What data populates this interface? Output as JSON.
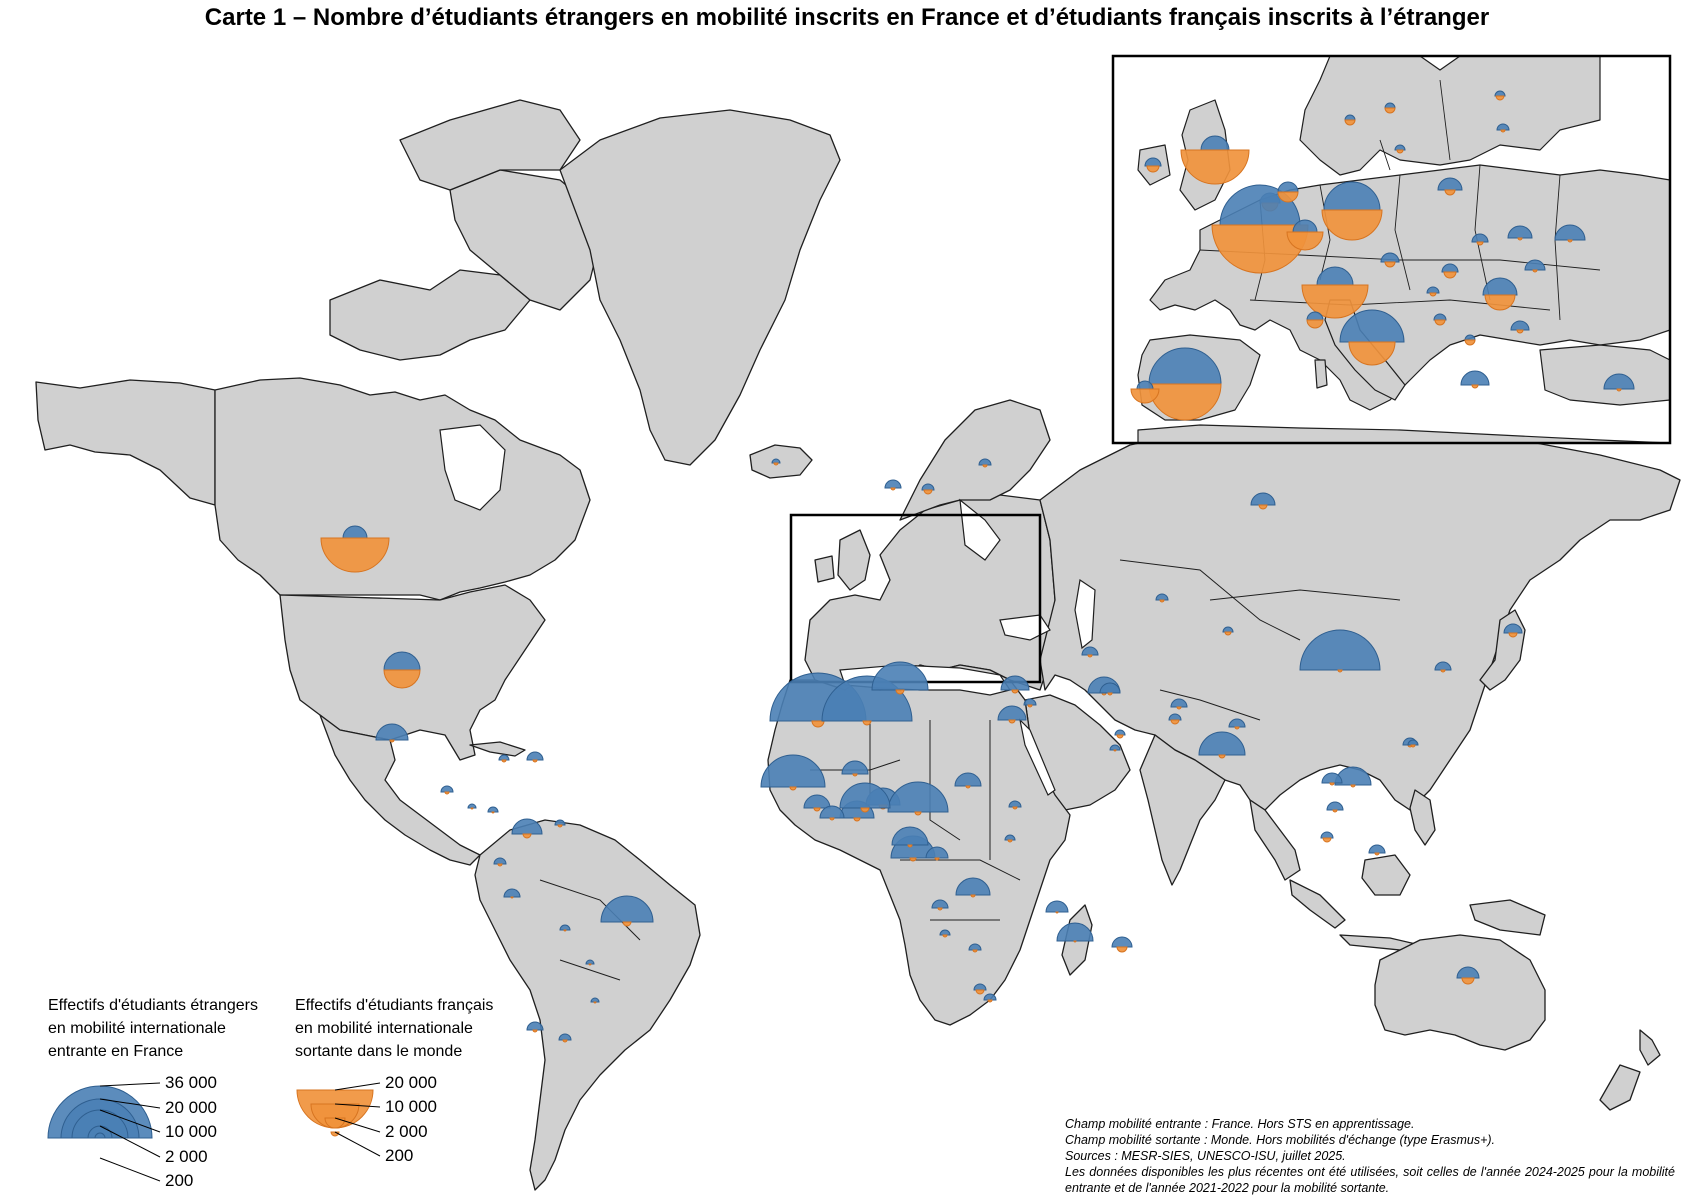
{
  "title": "Carte 1 – Nombre d’étudiants étrangers en mobilité inscrits en France et d’étudiants français inscrits à l’étranger",
  "colors": {
    "incoming": "#4a7fb5",
    "outgoing": "#f0923c",
    "land": "#d0d0d0",
    "border": "#1f1f1f",
    "sea": "#ffffff"
  },
  "legend": {
    "incoming": {
      "lines": [
        "Effectifs d'étudiants étrangers",
        "en mobilité internationale",
        "entrante en France"
      ],
      "labels": [
        "36 000",
        "20 000",
        "10 000",
        "2 000",
        "200"
      ]
    },
    "outgoing": {
      "lines": [
        "Effectifs d'étudiants français",
        "en mobilité internationale",
        "sortante dans le monde"
      ],
      "labels": [
        "20 000",
        "10 000",
        "2 000",
        "200"
      ]
    }
  },
  "notes": [
    "Champ mobilité entrante : France. Hors STS en apprentissage.",
    "Champ mobilité sortante : Monde. Hors mobilités d'échange (type Erasmus+).",
    "Sources : MESR-SIES, UNESCO-ISU, juillet 2025.",
    "Les données disponibles les plus récentes ont été utilisées, soit celles de l'année 2024-2025 pour la mobilité entrante et de l'année 2021-2022 pour la mobilité sortante."
  ]
}
